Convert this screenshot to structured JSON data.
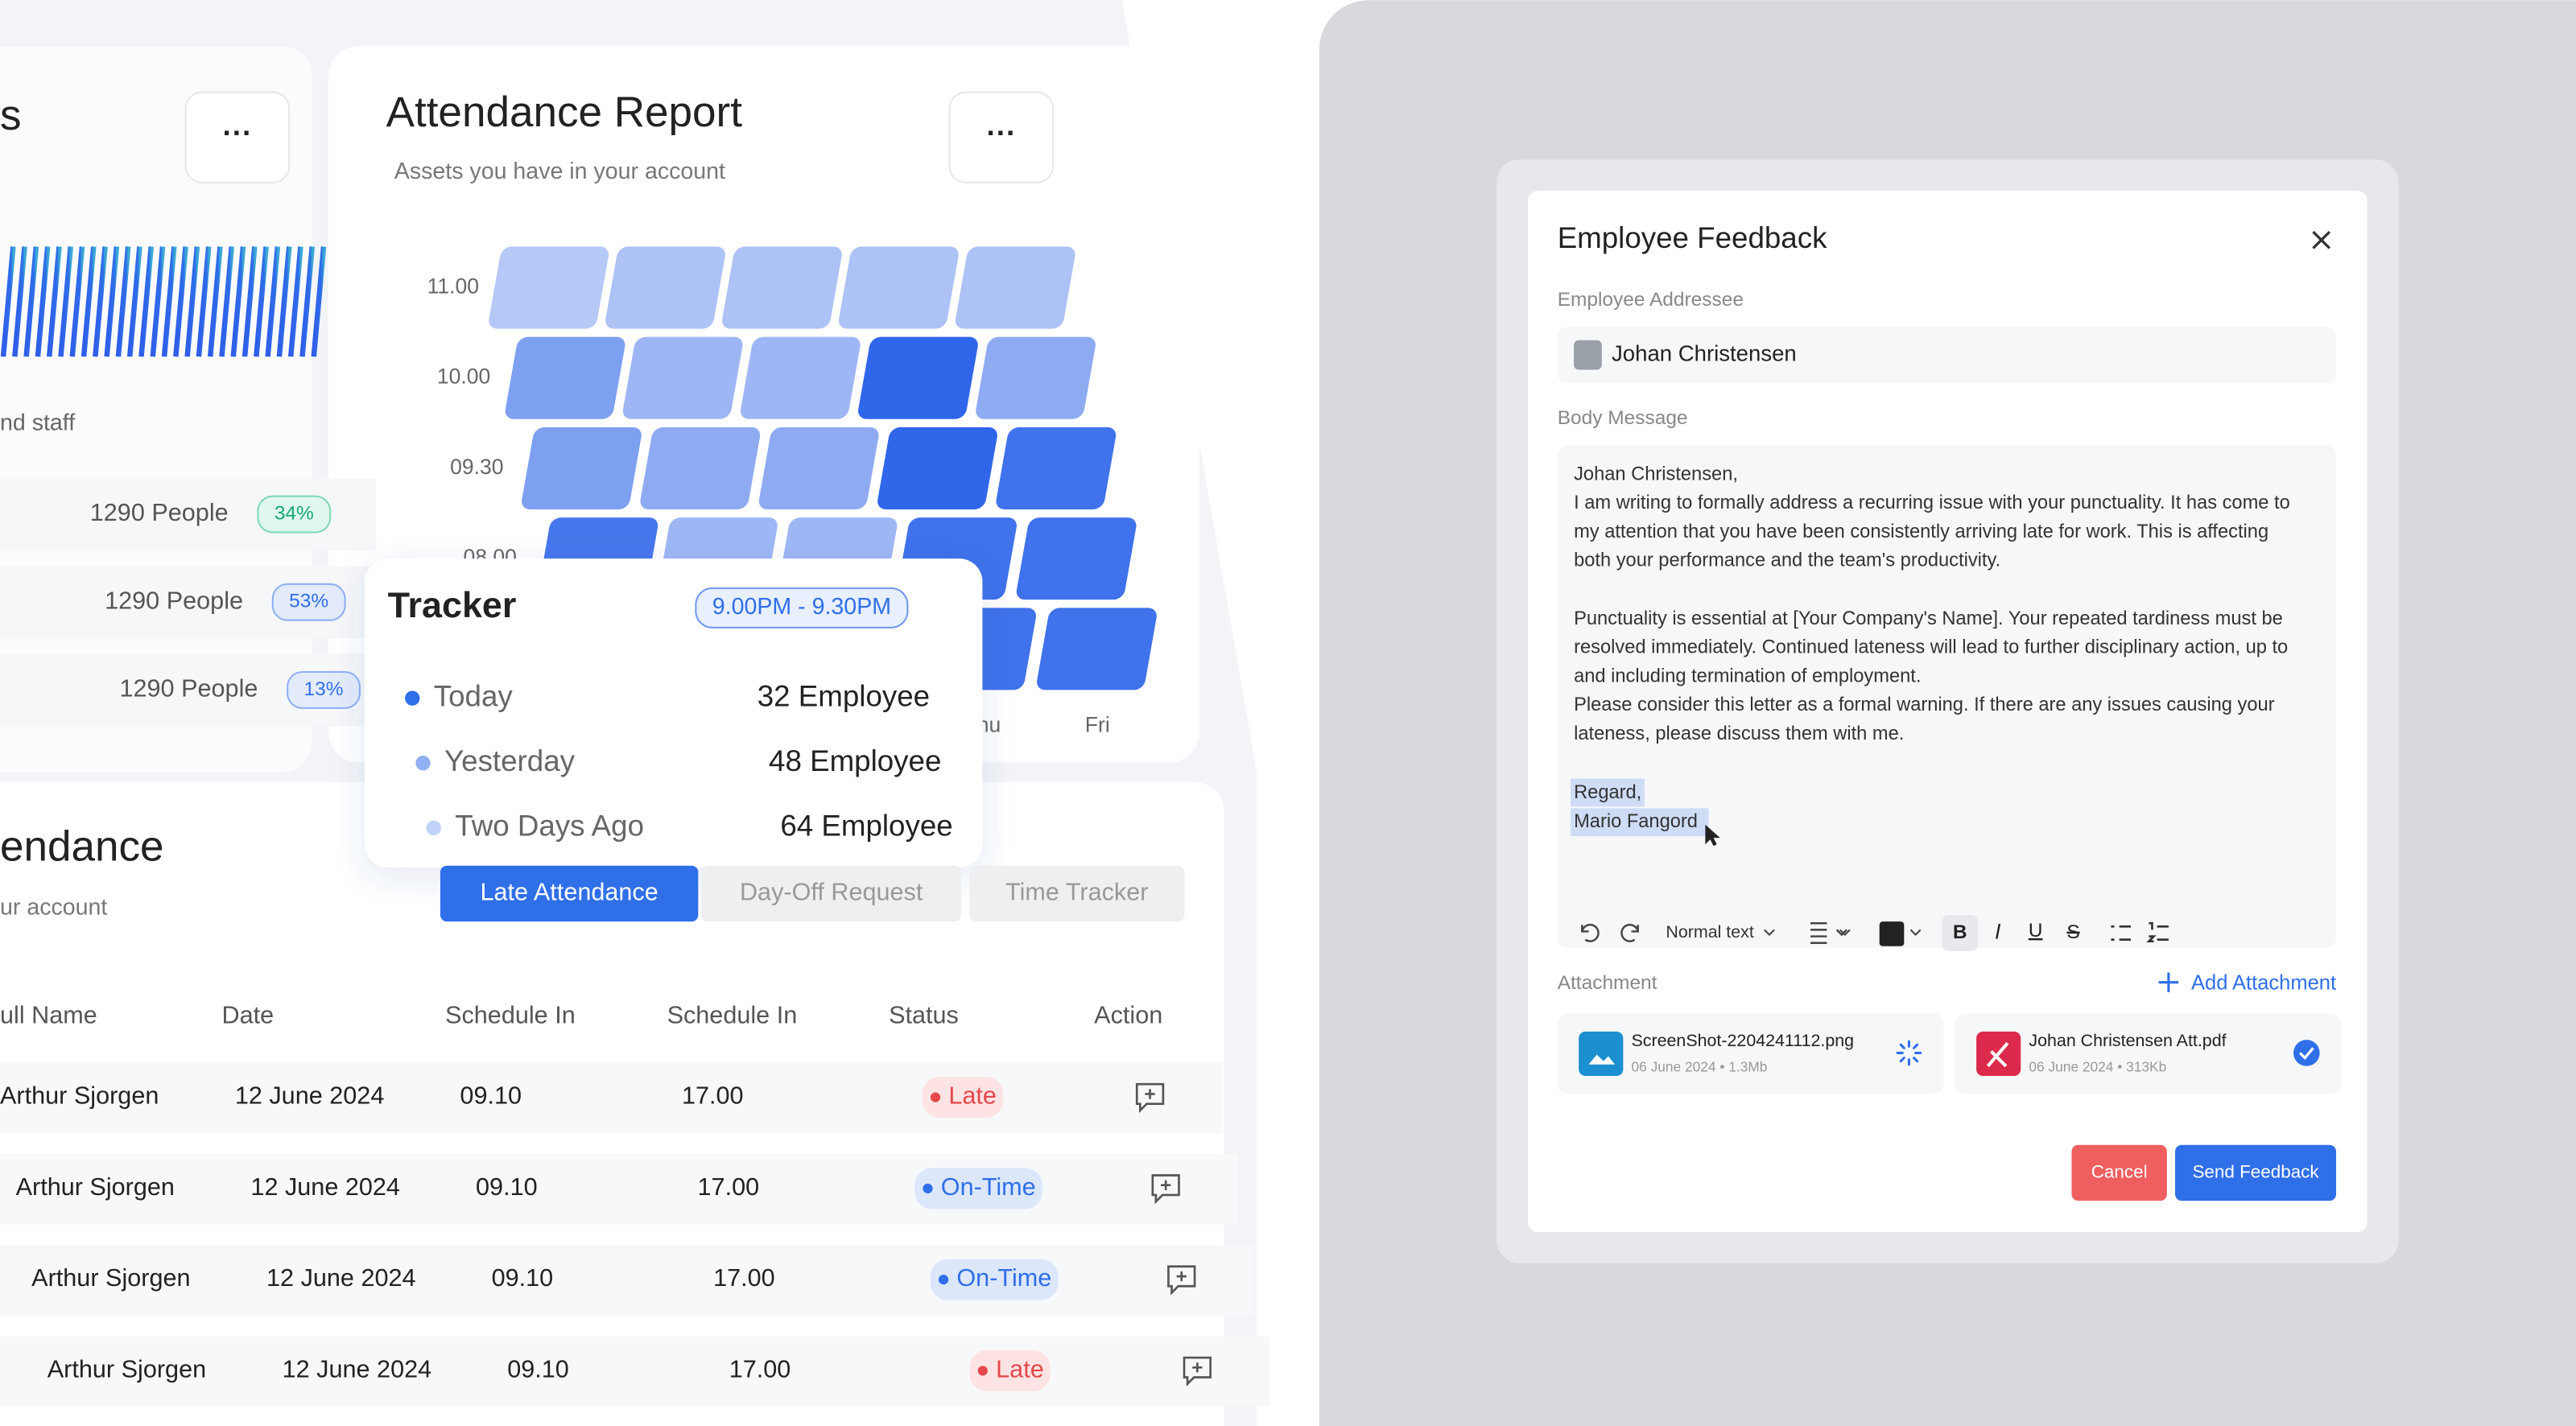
{
  "staff_card": {
    "title_fragment": "s",
    "caption_fragment": "nd staff",
    "rows": [
      {
        "count": "1290 People",
        "share": "34%"
      },
      {
        "count": "1290 People",
        "share": "53%"
      },
      {
        "count": "1290 People",
        "share": "13%"
      }
    ]
  },
  "attendance_report": {
    "title": "Attendance Report",
    "subtitle": "Assets you have in your account",
    "y_labels": [
      "11.00",
      "10.00",
      "09.30",
      "08.00"
    ],
    "x_labels": [
      "Thu",
      "Fri"
    ]
  },
  "tracker": {
    "title": "Tracker",
    "range": "9.00PM - 9.30PM",
    "items": [
      {
        "label": "Today",
        "value": "32 Employee"
      },
      {
        "label": "Yesterday",
        "value": "48 Employee"
      },
      {
        "label": "Two Days Ago",
        "value": "64 Employee"
      }
    ]
  },
  "attendance": {
    "title_fragment": "endance",
    "subtitle_fragment": "ur account",
    "tabs": [
      "Late Attendance",
      "Day-Off Request",
      "Time Tracker"
    ],
    "columns": [
      "ull Name",
      "Date",
      "Schedule In",
      "Schedule In",
      "Status",
      "Action"
    ],
    "rows": [
      [
        "Arthur Sjorgen",
        "12 June 2024",
        "09.10",
        "17.00",
        "Late"
      ],
      [
        "Arthur Sjorgen",
        "12 June 2024",
        "09.10",
        "17.00",
        "On-Time"
      ],
      [
        "Arthur Sjorgen",
        "12 June 2024",
        "09.10",
        "17.00",
        "On-Time"
      ],
      [
        "Arthur Sjorgen",
        "12 June 2024",
        "09.10",
        "17.00",
        "Late"
      ]
    ]
  },
  "feedback": {
    "title": "Employee Feedback",
    "addressee_label": "Employee Addressee",
    "addressee": "Johan Christensen",
    "body_label": "Body Message",
    "body": [
      "Johan Christensen,",
      "I am writing to formally address a recurring issue with your punctuality. It has come to",
      "my attention that you have been consistently arriving late for work. This is affecting",
      "both your performance and the team's productivity.",
      "Punctuality is essential at [Your Company's Name]. Your repeated tardiness must be",
      "resolved immediately. Continued lateness will lead to further disciplinary action, up to",
      "and including termination of employment.",
      "Please consider this letter as a formal warning. If there are any issues causing your",
      "lateness, please discuss them with me.",
      "Regard,",
      "Mario Fangord"
    ],
    "text_style": "Normal text",
    "attachment_label": "Attachment",
    "add_attachment": "Add Attachment",
    "files": [
      {
        "name": "ScreenShot-2204241112.png",
        "meta": "06 June 2024 • 1.3Mb"
      },
      {
        "name": "Johan Christensen Att.pdf",
        "meta": "06 June 2024 • 313Kb"
      }
    ],
    "cancel": "Cancel",
    "send": "Send Feedback"
  }
}
